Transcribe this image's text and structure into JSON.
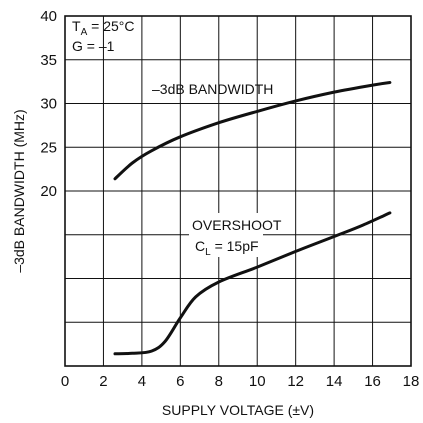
{
  "chart_data": {
    "type": "line",
    "title": "",
    "xlabel": "SUPPLY VOLTAGE (±V)",
    "ylabel": "–3dB BANDWIDTH (MHz)",
    "xlim": [
      0,
      18
    ],
    "ylim": [
      0,
      40
    ],
    "x_ticks": [
      "0",
      "2",
      "4",
      "6",
      "8",
      "10",
      "12",
      "14",
      "16",
      "18"
    ],
    "y_ticks": [
      "20",
      "25",
      "30",
      "35",
      "40"
    ],
    "grid": true,
    "conditions": {
      "ta_prefix": "T",
      "ta_subscript": "A",
      "ta_value": " = 25°C",
      "gain": "G = –1"
    },
    "series": [
      {
        "name": "–3dB BANDWIDTH",
        "x": [
          2.6,
          3.5,
          4.5,
          6,
          8,
          10,
          12,
          14,
          16,
          16.9
        ],
        "y": [
          21.4,
          23.2,
          24.6,
          26.2,
          27.8,
          29.1,
          30.3,
          31.3,
          32.1,
          32.4
        ]
      },
      {
        "name": "OVERSHOOT",
        "name_line2_prefix": "C",
        "name_line2_subscript": "L",
        "name_line2_value": " = 15pF",
        "x": [
          2.6,
          3.5,
          4.5,
          5.2,
          6,
          6.8,
          8,
          10,
          12,
          14,
          15.5,
          16.9
        ],
        "y": [
          1.4,
          1.45,
          1.7,
          2.8,
          5.5,
          7.9,
          9.6,
          11.3,
          13.1,
          14.8,
          16.1,
          17.5
        ]
      }
    ]
  }
}
